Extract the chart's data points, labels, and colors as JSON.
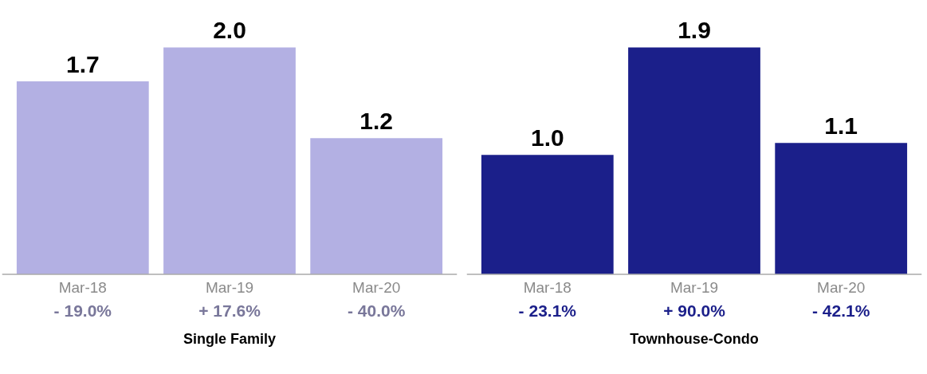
{
  "chart_data": [
    {
      "type": "bar",
      "xlabel": "Single Family",
      "categories": [
        "Mar-18",
        "Mar-19",
        "Mar-20"
      ],
      "values": [
        1.7,
        2.0,
        1.2
      ],
      "value_labels": [
        "1.7",
        "2.0",
        "1.2"
      ],
      "color": "#b3b0e3",
      "grid": false,
      "annotations": [
        "- 19.0%",
        "+ 17.6%",
        "- 40.0%"
      ]
    },
    {
      "type": "bar",
      "xlabel": "Townhouse-Condo",
      "categories": [
        "Mar-18",
        "Mar-19",
        "Mar-20"
      ],
      "values": [
        1.0,
        1.9,
        1.1
      ],
      "value_labels": [
        "1.0",
        "1.9",
        "1.1"
      ],
      "color": "#1b1f8a",
      "grid": false,
      "annotations": [
        "- 23.1%",
        "+ 90.0%",
        "- 42.1%"
      ]
    }
  ]
}
